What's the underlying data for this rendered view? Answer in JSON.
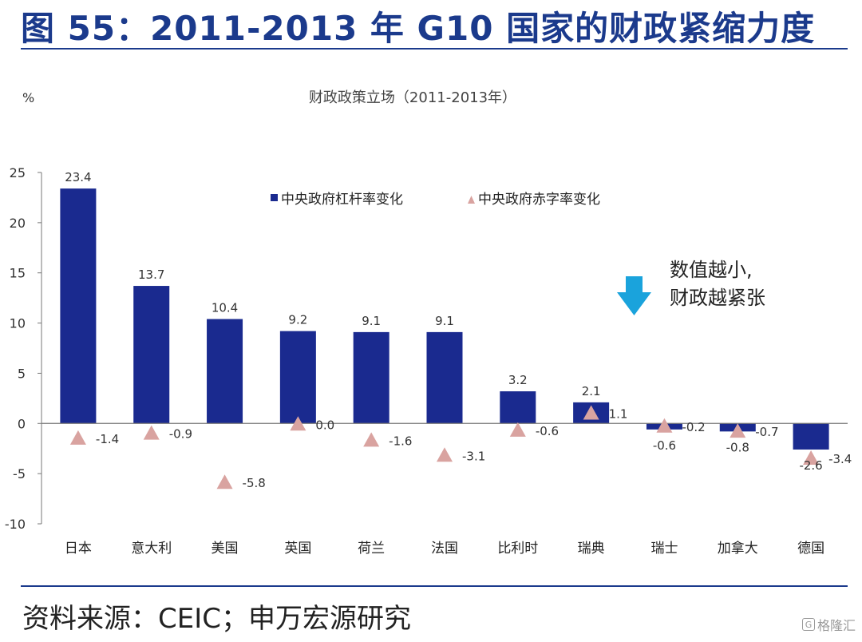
{
  "header": {
    "title": "图 55：2011-2013 年 G10 国家的财政紧缩力度"
  },
  "footer": {
    "source": "资料来源：CEIC；申万宏源研究",
    "watermark_text": "格隆汇"
  },
  "annotation": {
    "line1": "数值越小,",
    "line2": "财政越紧张",
    "arrow_color": "#1aa3dc"
  },
  "colors": {
    "bar": "#1a2a8f",
    "triangle": "#d9a3a0",
    "heading": "#1b3a8c"
  },
  "chart_data": {
    "type": "bar",
    "title": "财政政策立场（2011-2013年）",
    "ylabel": "%",
    "ylim": [
      -10,
      25
    ],
    "yticks": [
      25,
      20,
      15,
      10,
      5,
      0,
      -5,
      -10
    ],
    "grid": false,
    "legend_position": "top-center",
    "categories": [
      "日本",
      "意大利",
      "美国",
      "英国",
      "荷兰",
      "法国",
      "比利时",
      "瑞典",
      "瑞士",
      "加拿大",
      "德国"
    ],
    "series": [
      {
        "name": "中央政府杠杆率变化",
        "kind": "bar",
        "values": [
          23.4,
          13.7,
          10.4,
          9.2,
          9.1,
          9.1,
          3.2,
          2.1,
          -0.6,
          -0.8,
          -2.6
        ],
        "labels": [
          "23.4",
          "13.7",
          "10.4",
          "9.2",
          "9.1",
          "9.1",
          "3.2",
          "2.1",
          "-0.6",
          "-0.8",
          "-2.6"
        ]
      },
      {
        "name": "中央政府赤字率变化",
        "kind": "triangle",
        "values": [
          -1.4,
          -0.9,
          -5.8,
          0.0,
          -1.6,
          -3.1,
          -0.6,
          1.1,
          -0.2,
          -0.7,
          -3.4
        ],
        "labels": [
          "-1.4",
          "-0.9",
          "-5.8",
          "0.0",
          "-1.6",
          "-3.1",
          "-0.6",
          "1.1",
          "-0.2",
          "-0.7",
          "-3.4"
        ]
      }
    ]
  }
}
